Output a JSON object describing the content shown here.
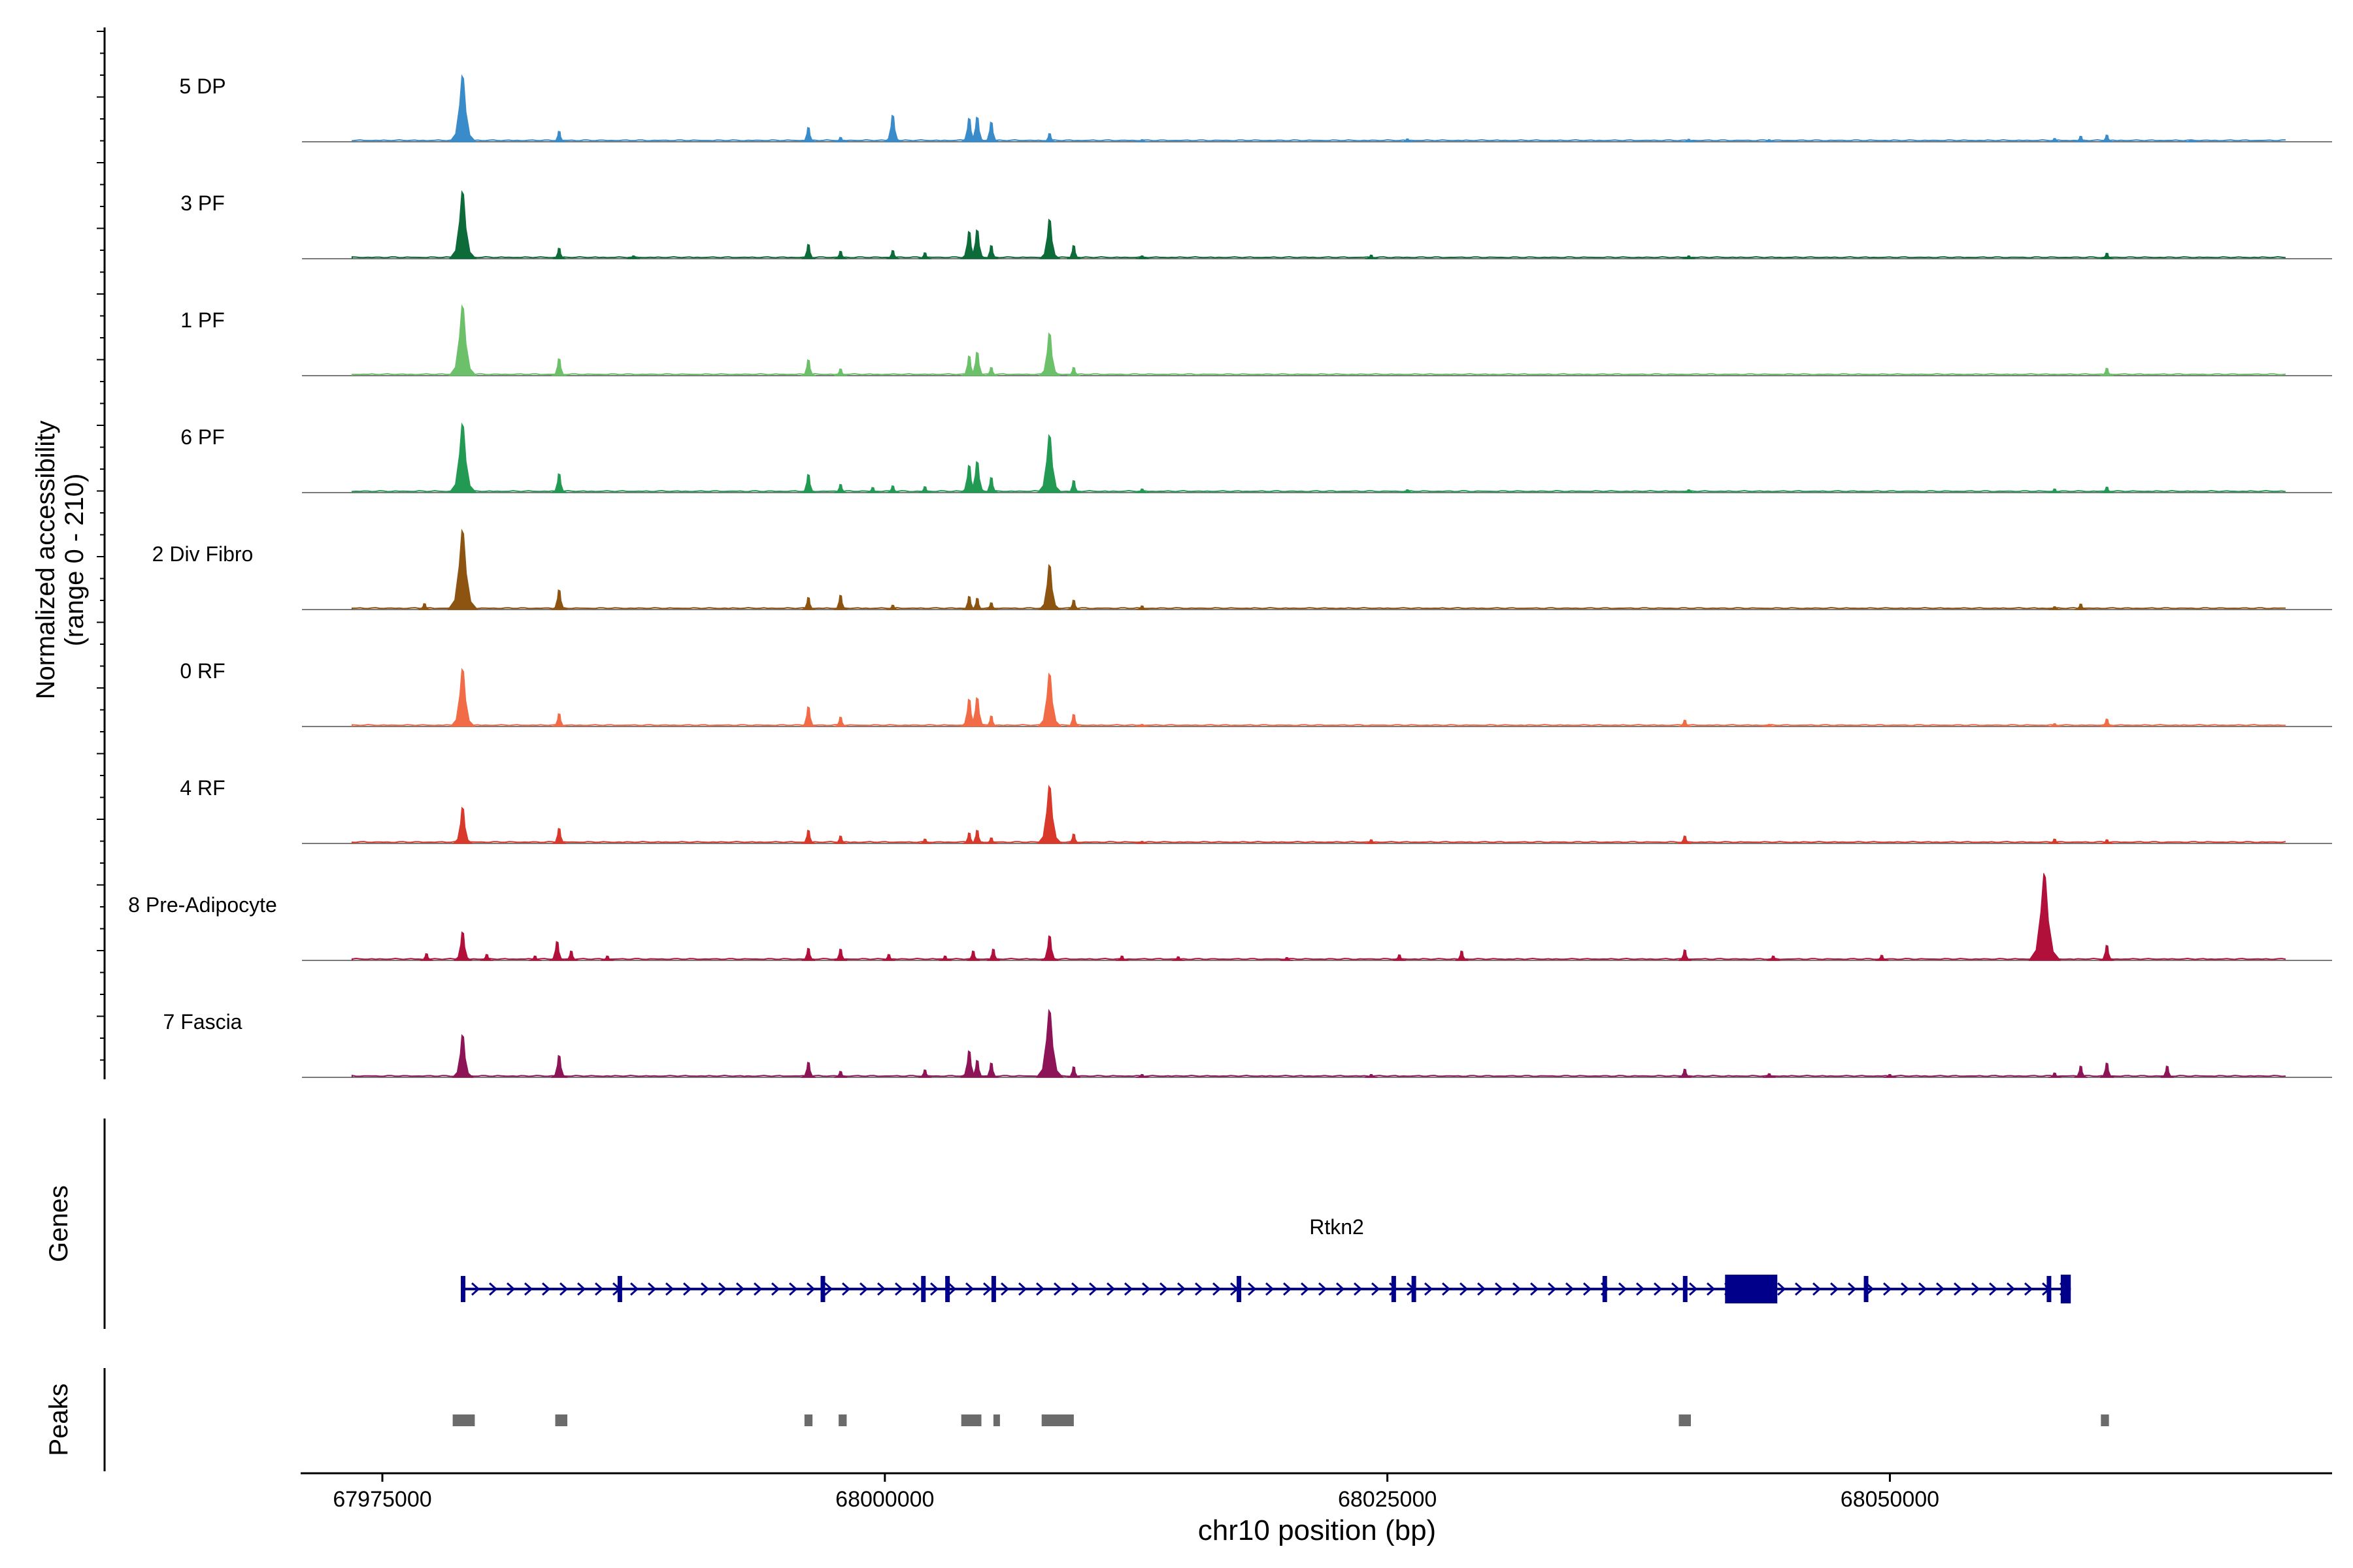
{
  "chart_data": {
    "type": "area",
    "title": "",
    "chromosome": "chr10",
    "xlabel": "chr10 position (bp)",
    "ylabel_line1": "Normalized accessibility",
    "ylabel_line2": "(range 0 - 210)",
    "xlim": [
      67971000,
      68072000
    ],
    "ylim": [
      0,
      210
    ],
    "xticks": [
      67975000,
      68000000,
      68025000,
      68050000
    ],
    "xtick_labels": [
      "67975000",
      "68000000",
      "68025000",
      "68050000"
    ],
    "tracks": [
      {
        "name": "5 DP",
        "color": "#3a8bc9",
        "peaks": [
          [
            67979000,
            175
          ],
          [
            67983800,
            28
          ],
          [
            67996200,
            38
          ],
          [
            67997800,
            12
          ],
          [
            68000400,
            70
          ],
          [
            68004200,
            62
          ],
          [
            68004600,
            65
          ],
          [
            68005300,
            52
          ],
          [
            68008200,
            22
          ],
          [
            68012800,
            6
          ],
          [
            68026000,
            8
          ],
          [
            68040000,
            7
          ],
          [
            68044000,
            6
          ],
          [
            68058200,
            9
          ],
          [
            68059500,
            15
          ],
          [
            68060800,
            18
          ],
          [
            68065000,
            5
          ]
        ]
      },
      {
        "name": "3 PF",
        "color": "#0d6b3a",
        "peaks": [
          [
            67979000,
            178
          ],
          [
            67983800,
            28
          ],
          [
            67987500,
            8
          ],
          [
            67996200,
            38
          ],
          [
            67997800,
            20
          ],
          [
            68000400,
            22
          ],
          [
            68002000,
            16
          ],
          [
            68004200,
            72
          ],
          [
            68004600,
            76
          ],
          [
            68005300,
            35
          ],
          [
            68008200,
            104
          ],
          [
            68009400,
            35
          ],
          [
            68012800,
            8
          ],
          [
            68024200,
            10
          ],
          [
            68040000,
            8
          ],
          [
            68060800,
            15
          ]
        ]
      },
      {
        "name": "1 PF",
        "color": "#6cc06a",
        "peaks": [
          [
            67979000,
            185
          ],
          [
            67983800,
            45
          ],
          [
            67996200,
            42
          ],
          [
            67997800,
            18
          ],
          [
            68004200,
            52
          ],
          [
            68004600,
            62
          ],
          [
            68005300,
            22
          ],
          [
            68008200,
            112
          ],
          [
            68009400,
            22
          ],
          [
            68060800,
            20
          ]
        ]
      },
      {
        "name": "6 PF",
        "color": "#239a53",
        "peaks": [
          [
            67979000,
            182
          ],
          [
            67983800,
            50
          ],
          [
            67996200,
            48
          ],
          [
            67997800,
            22
          ],
          [
            67999400,
            14
          ],
          [
            68000400,
            18
          ],
          [
            68002000,
            16
          ],
          [
            68004200,
            72
          ],
          [
            68004600,
            82
          ],
          [
            68005300,
            40
          ],
          [
            68008200,
            152
          ],
          [
            68009400,
            32
          ],
          [
            68012800,
            10
          ],
          [
            68026000,
            8
          ],
          [
            68040000,
            8
          ],
          [
            68058200,
            10
          ],
          [
            68060800,
            15
          ]
        ]
      },
      {
        "name": "2 Div Fibro",
        "color": "#8c5410",
        "peaks": [
          [
            67979000,
            210
          ],
          [
            67977100,
            16
          ],
          [
            67983800,
            52
          ],
          [
            67996200,
            32
          ],
          [
            67997800,
            38
          ],
          [
            68000400,
            12
          ],
          [
            68004200,
            35
          ],
          [
            68004600,
            30
          ],
          [
            68005300,
            18
          ],
          [
            68008200,
            118
          ],
          [
            68009400,
            25
          ],
          [
            68012800,
            10
          ],
          [
            68058200,
            8
          ],
          [
            68059500,
            15
          ]
        ]
      },
      {
        "name": "0 RF",
        "color": "#f26b47",
        "peaks": [
          [
            67979000,
            152
          ],
          [
            67983800,
            34
          ],
          [
            67996200,
            52
          ],
          [
            67997800,
            25
          ],
          [
            68004200,
            72
          ],
          [
            68004600,
            76
          ],
          [
            68005300,
            28
          ],
          [
            68008200,
            140
          ],
          [
            68009400,
            32
          ],
          [
            68012800,
            6
          ],
          [
            68039800,
            17
          ],
          [
            68044000,
            6
          ],
          [
            68058200,
            8
          ],
          [
            68060800,
            20
          ]
        ]
      },
      {
        "name": "4 RF",
        "color": "#d8392b",
        "peaks": [
          [
            67979000,
            95
          ],
          [
            67983800,
            40
          ],
          [
            67996200,
            35
          ],
          [
            67997800,
            20
          ],
          [
            68002000,
            12
          ],
          [
            68004200,
            28
          ],
          [
            68004600,
            35
          ],
          [
            68005300,
            15
          ],
          [
            68008200,
            152
          ],
          [
            68009400,
            25
          ],
          [
            68012800,
            6
          ],
          [
            68024200,
            10
          ],
          [
            68039800,
            20
          ],
          [
            68058200,
            12
          ],
          [
            68060800,
            10
          ]
        ]
      },
      {
        "name": "8 Pre-Adipocyte",
        "color": "#b0103a",
        "peaks": [
          [
            67977200,
            18
          ],
          [
            67979000,
            75
          ],
          [
            67980200,
            16
          ],
          [
            67982600,
            12
          ],
          [
            67983700,
            50
          ],
          [
            67984400,
            25
          ],
          [
            67986200,
            12
          ],
          [
            67996200,
            32
          ],
          [
            67997800,
            30
          ],
          [
            68000200,
            16
          ],
          [
            68003000,
            12
          ],
          [
            68004400,
            25
          ],
          [
            68005400,
            30
          ],
          [
            68008200,
            65
          ],
          [
            68011800,
            12
          ],
          [
            68014600,
            10
          ],
          [
            68020000,
            8
          ],
          [
            68025600,
            15
          ],
          [
            68028700,
            25
          ],
          [
            68039800,
            28
          ],
          [
            68044200,
            12
          ],
          [
            68049600,
            14
          ],
          [
            68057700,
            230
          ],
          [
            68060800,
            40
          ]
        ]
      },
      {
        "name": "7 Fascia",
        "color": "#8c1457",
        "peaks": [
          [
            67979000,
            112
          ],
          [
            67983800,
            58
          ],
          [
            67996200,
            40
          ],
          [
            67997800,
            16
          ],
          [
            68002000,
            20
          ],
          [
            68004200,
            70
          ],
          [
            68004600,
            45
          ],
          [
            68005300,
            38
          ],
          [
            68008200,
            178
          ],
          [
            68009400,
            28
          ],
          [
            68012800,
            8
          ],
          [
            68024200,
            8
          ],
          [
            68039800,
            22
          ],
          [
            68044000,
            10
          ],
          [
            68050000,
            8
          ],
          [
            68058200,
            12
          ],
          [
            68059500,
            30
          ],
          [
            68060800,
            38
          ],
          [
            68063800,
            30
          ]
        ]
      }
    ],
    "gene": {
      "name": "Rtkn2",
      "start": 67979000,
      "end": 68059000,
      "strand": "+",
      "exons": [
        67979000,
        67986800,
        67996900,
        68001900,
        68003100,
        68005400,
        68017600,
        68025300,
        68026300,
        68035800,
        68039800,
        68048800,
        68057900
      ],
      "cds_block": [
        68041800,
        68044400
      ],
      "last_exon": [
        68058500,
        68059000
      ]
    },
    "peaks_track": [
      [
        67978500,
        67979600
      ],
      [
        67983600,
        67984200
      ],
      [
        67996000,
        67996400
      ],
      [
        67997700,
        67998100
      ],
      [
        68003800,
        68004800
      ],
      [
        68005400,
        68005600
      ],
      [
        68007800,
        68009400
      ],
      [
        68039500,
        68040100
      ],
      [
        68060500,
        68060900
      ]
    ],
    "panel_labels": {
      "genes": "Genes",
      "peaks": "Peaks"
    }
  }
}
